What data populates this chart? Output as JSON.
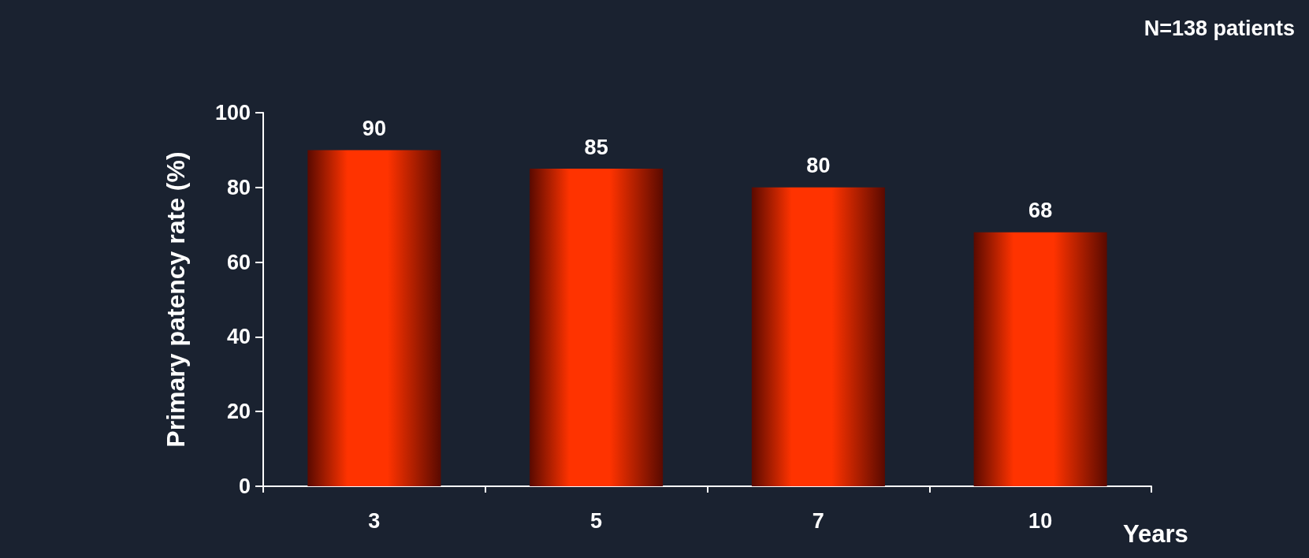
{
  "chart_data": {
    "type": "bar",
    "categories": [
      "3",
      "5",
      "7",
      "10"
    ],
    "values": [
      90,
      85,
      80,
      68
    ],
    "color": "#ff3300",
    "xlabel": "Years",
    "ylabel": "Primary patency rate (%)",
    "annotations": [
      "N=138 patients"
    ],
    "ylim": [
      0,
      100
    ],
    "yticks": [
      0,
      20,
      40,
      60,
      80,
      100
    ],
    "grid": false,
    "data_labels": true
  }
}
